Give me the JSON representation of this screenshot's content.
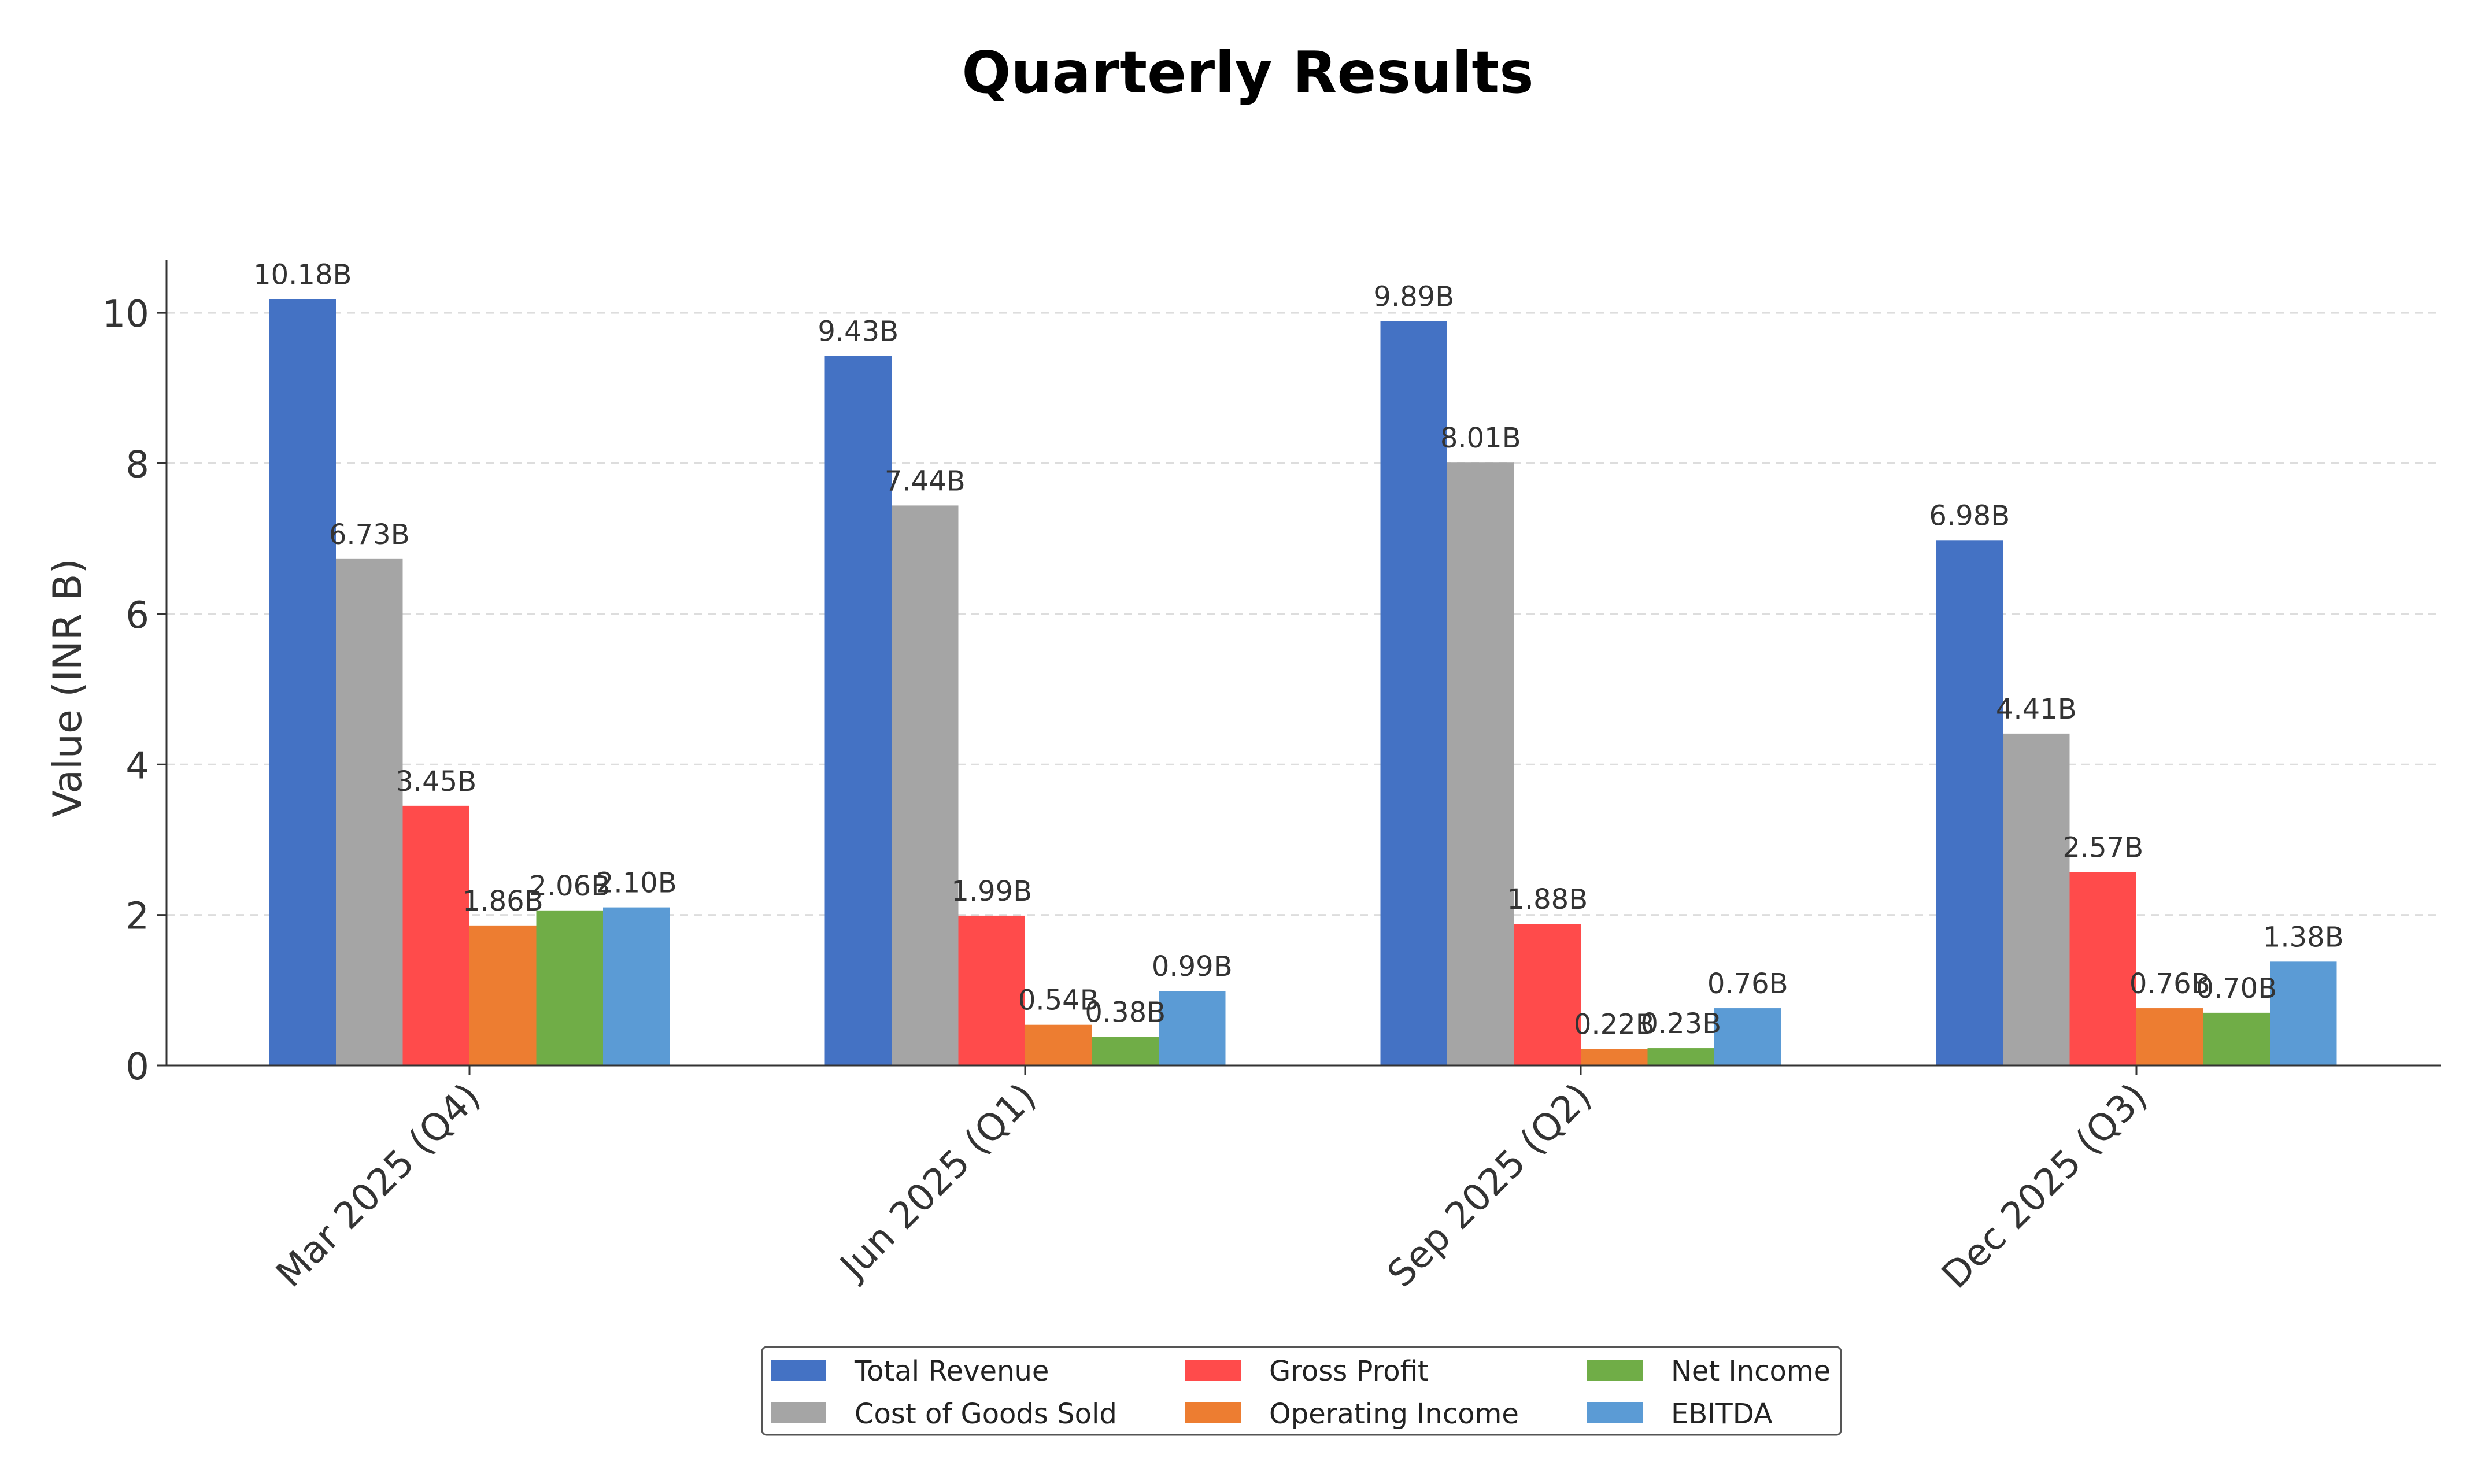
{
  "chart_data": {
    "type": "bar",
    "title": "Quarterly Results",
    "xlabel": "",
    "ylabel": "Value (INR B)",
    "ylim": [
      0,
      10.7
    ],
    "yticks": [
      0,
      2,
      4,
      6,
      8,
      10
    ],
    "ytick_labels": [
      "0",
      "2",
      "4",
      "6",
      "8",
      "10"
    ],
    "grid": "horizontal dashed",
    "legend_position": "bottom-center",
    "categories": [
      "Mar 2025 (Q4)",
      "Jun 2025 (Q1)",
      "Sep 2025 (Q2)",
      "Dec 2025 (Q3)"
    ],
    "series": [
      {
        "name": "Total Revenue",
        "color": "#4472C4",
        "values": [
          10.18,
          9.43,
          9.89,
          6.98
        ],
        "labels": [
          "10.18B",
          "9.43B",
          "9.89B",
          "6.98B"
        ]
      },
      {
        "name": "Cost of Goods Sold",
        "color": "#A5A5A5",
        "values": [
          6.73,
          7.44,
          8.01,
          4.41
        ],
        "labels": [
          "6.73B",
          "7.44B",
          "8.01B",
          "4.41B"
        ]
      },
      {
        "name": "Gross Profit",
        "color": "#FF4B4B",
        "values": [
          3.45,
          1.99,
          1.88,
          2.57
        ],
        "labels": [
          "3.45B",
          "1.99B",
          "1.88B",
          "2.57B"
        ]
      },
      {
        "name": "Operating Income",
        "color": "#ED7D31",
        "values": [
          1.86,
          0.54,
          0.22,
          0.76
        ],
        "labels": [
          "1.86B",
          "0.54B",
          "0.22B",
          "0.76B"
        ]
      },
      {
        "name": "Net Income",
        "color": "#70AD47",
        "values": [
          2.06,
          0.38,
          0.23,
          0.7
        ],
        "labels": [
          "2.06B",
          "0.38B",
          "0.23B",
          "0.70B"
        ]
      },
      {
        "name": "EBITDA",
        "color": "#5B9BD5",
        "values": [
          2.1,
          0.99,
          0.76,
          1.38
        ],
        "labels": [
          "2.10B",
          "0.99B",
          "0.76B",
          "1.38B"
        ]
      }
    ]
  }
}
